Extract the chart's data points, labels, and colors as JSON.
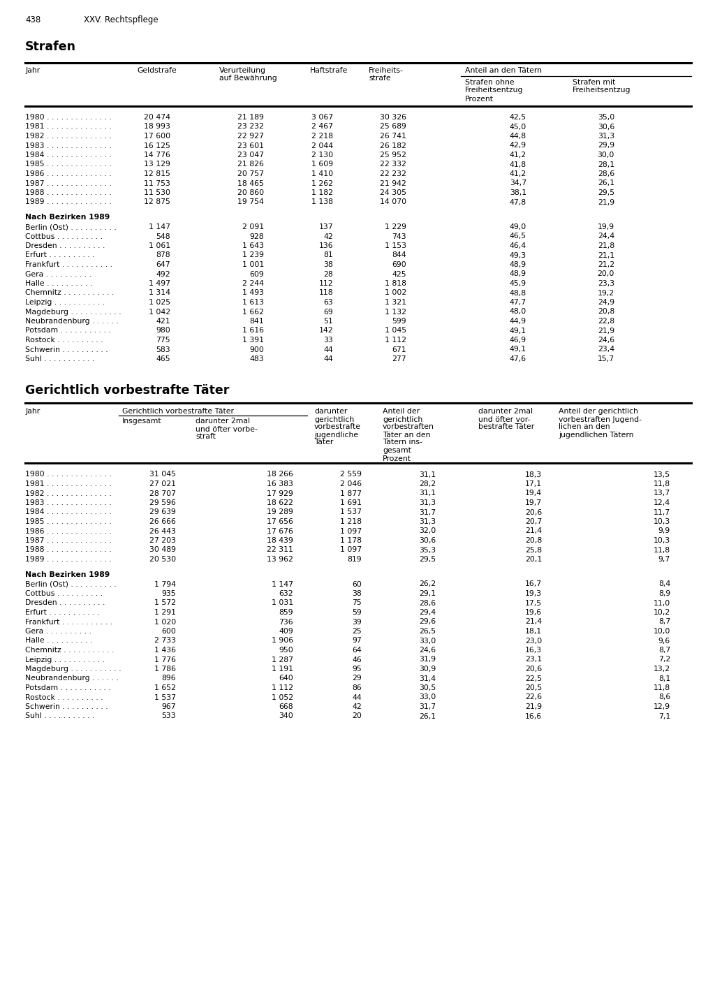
{
  "page_number": "438",
  "chapter": "XXV. Rechtspflege",
  "section1_title": "Strafen",
  "section2_title": "Gerichtlich vorbestrafte Täter",
  "table1_years": [
    [
      "1980",
      "20 474",
      "21 189",
      "3 067",
      "30 326",
      "42,5",
      "35,0"
    ],
    [
      "1981",
      "18 993",
      "23 232",
      "2 467",
      "25 689",
      "45,0",
      "30,6"
    ],
    [
      "1982",
      "17 600",
      "22 927",
      "2 218",
      "26 741",
      "44,8",
      "31,3"
    ],
    [
      "1983",
      "16 125",
      "23 601",
      "2 044",
      "26 182",
      "42,9",
      "29,9"
    ],
    [
      "1984",
      "14 776",
      "23 047",
      "2 130",
      "25 952",
      "41,2",
      "30,0"
    ],
    [
      "1985",
      "13 129",
      "21 826",
      "1 609",
      "22 332",
      "41,8",
      "28,1"
    ],
    [
      "1986",
      "12 815",
      "20 757",
      "1 410",
      "22 232",
      "41,2",
      "28,6"
    ],
    [
      "1987",
      "11 753",
      "18 465",
      "1 262",
      "21 942",
      "34,7",
      "26,1"
    ],
    [
      "1988",
      "11 530",
      "20 860",
      "1 182",
      "24 305",
      "38,1",
      "29,5"
    ],
    [
      "1989",
      "12 875",
      "19 754",
      "1 138",
      "14 070",
      "47,8",
      "21,9"
    ]
  ],
  "table1_bezirken_header": "Nach Bezirken 1989",
  "table1_bezirken": [
    [
      "Berlin (Ost)",
      "1 147",
      "2 091",
      "137",
      "1 229",
      "49,0",
      "19,9"
    ],
    [
      "Cottbus",
      "548",
      "928",
      "42",
      "743",
      "46,5",
      "24,4"
    ],
    [
      "Dresden",
      "1 061",
      "1 643",
      "136",
      "1 153",
      "46,4",
      "21,8"
    ],
    [
      "Erfurt",
      "878",
      "1 239",
      "81",
      "844",
      "49,3",
      "21,1"
    ],
    [
      "Frankfurt",
      "647",
      "1 001",
      "38",
      "690",
      "48,9",
      "21,2"
    ],
    [
      "Gera",
      "492",
      "609",
      "28",
      "425",
      "48,9",
      "20,0"
    ],
    [
      "Halle",
      "1 497",
      "2 244",
      "112",
      "1 818",
      "45,9",
      "23,3"
    ],
    [
      "Chemnitz",
      "1 314",
      "1 493",
      "118",
      "1 002",
      "48,8",
      "19,2"
    ],
    [
      "Leipzig",
      "1 025",
      "1 613",
      "63",
      "1 321",
      "47,7",
      "24,9"
    ],
    [
      "Magdeburg",
      "1 042",
      "1 662",
      "69",
      "1 132",
      "48,0",
      "20,8"
    ],
    [
      "Neubrandenburg",
      "421",
      "841",
      "51",
      "599",
      "44,9",
      "22,8"
    ],
    [
      "Potsdam",
      "980",
      "1 616",
      "142",
      "1 045",
      "49,1",
      "21,9"
    ],
    [
      "Rostock",
      "775",
      "1 391",
      "33",
      "1 112",
      "46,9",
      "24,6"
    ],
    [
      "Schwerin",
      "583",
      "900",
      "44",
      "671",
      "49,1",
      "23,4"
    ],
    [
      "Suhl",
      "465",
      "483",
      "44",
      "277",
      "47,6",
      "15,7"
    ]
  ],
  "table2_years": [
    [
      "1980",
      "31 045",
      "18 266",
      "2 559",
      "31,1",
      "18,3",
      "13,5"
    ],
    [
      "1981",
      "27 021",
      "16 383",
      "2 046",
      "28,2",
      "17,1",
      "11,8"
    ],
    [
      "1982",
      "28 707",
      "17 929",
      "1 877",
      "31,1",
      "19,4",
      "13,7"
    ],
    [
      "1983",
      "29 596",
      "18 622",
      "1 691",
      "31,3",
      "19,7",
      "12,4"
    ],
    [
      "1984",
      "29 639",
      "19 289",
      "1 537",
      "31,7",
      "20,6",
      "11,7"
    ],
    [
      "1985",
      "26 666",
      "17 656",
      "1 218",
      "31,3",
      "20,7",
      "10,3"
    ],
    [
      "1986",
      "26 443",
      "17 676",
      "1 097",
      "32,0",
      "21,4",
      "9,9"
    ],
    [
      "1987",
      "27 203",
      "18 439",
      "1 178",
      "30,6",
      "20,8",
      "10,3"
    ],
    [
      "1988",
      "30 489",
      "22 311",
      "1 097",
      "35,3",
      "25,8",
      "11,8"
    ],
    [
      "1989",
      "20 530",
      "13 962",
      "819",
      "29,5",
      "20,1",
      "9,7"
    ]
  ],
  "table2_bezirken_header": "Nach Bezirken 1989",
  "table2_bezirken": [
    [
      "Berlin (Ost)",
      "1 794",
      "1 147",
      "60",
      "26,2",
      "16,7",
      "8,4"
    ],
    [
      "Cottbus",
      "935",
      "632",
      "38",
      "29,1",
      "19,3",
      "8,9"
    ],
    [
      "Dresden",
      "1 572",
      "1 031",
      "75",
      "28,6",
      "17,5",
      "11,0"
    ],
    [
      "Erfurt",
      "1 291",
      "859",
      "59",
      "29,4",
      "19,6",
      "10,2"
    ],
    [
      "Frankfurt",
      "1 020",
      "736",
      "39",
      "29,6",
      "21,4",
      "8,7"
    ],
    [
      "Gera",
      "600",
      "409",
      "25",
      "26,5",
      "18,1",
      "10,0"
    ],
    [
      "Halle",
      "2 733",
      "1 906",
      "97",
      "33,0",
      "23,0",
      "9,6"
    ],
    [
      "Chemnitz",
      "1 436",
      "950",
      "64",
      "24,6",
      "16,3",
      "8,7"
    ],
    [
      "Leipzig",
      "1 776",
      "1 287",
      "46",
      "31,9",
      "23,1",
      "7,2"
    ],
    [
      "Magdeburg",
      "1 786",
      "1 191",
      "95",
      "30,9",
      "20,6",
      "13,2"
    ],
    [
      "Neubrandenburg",
      "896",
      "640",
      "29",
      "31,4",
      "22,5",
      "8,1"
    ],
    [
      "Potsdam",
      "1 652",
      "1 112",
      "86",
      "30,5",
      "20,5",
      "11,8"
    ],
    [
      "Rostock",
      "1 537",
      "1 052",
      "44",
      "33,0",
      "22,6",
      "8,6"
    ],
    [
      "Schwerin",
      "967",
      "668",
      "42",
      "31,7",
      "21,9",
      "12,9"
    ],
    [
      "Suhl",
      "533",
      "340",
      "20",
      "26,1",
      "16,6",
      "7,1"
    ]
  ]
}
